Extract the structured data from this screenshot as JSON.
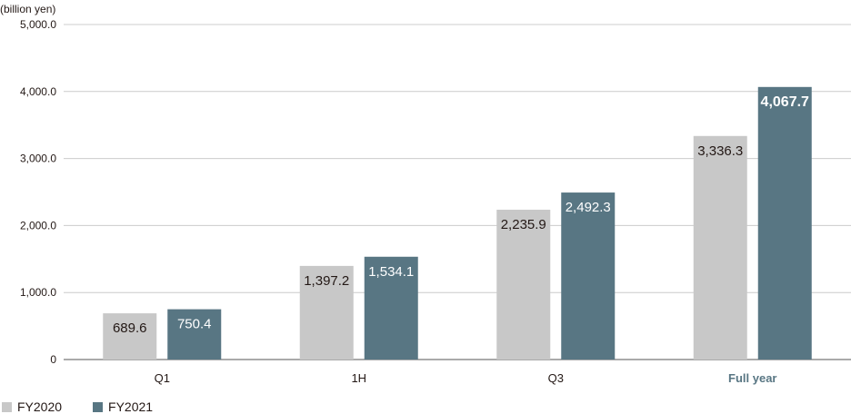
{
  "chart_data": {
    "type": "bar",
    "unit_label": "(billion yen)",
    "categories": [
      "Q1",
      "1H",
      "Q3",
      "Full year"
    ],
    "highlight_category": "Full year",
    "series": [
      {
        "name": "FY2020",
        "color": "#c8c8c8",
        "values": [
          689.6,
          1397.2,
          2235.9,
          3336.3
        ],
        "labels": [
          "689.6",
          "1,397.2",
          "2,235.9",
          "3,336.3"
        ],
        "label_color": "#231815"
      },
      {
        "name": "FY2021",
        "color": "#587683",
        "values": [
          750.4,
          1534.1,
          2492.3,
          4067.7
        ],
        "labels": [
          "750.4",
          "1,534.1",
          "2,492.3",
          "4,067.7"
        ],
        "label_color": "#ffffff"
      }
    ],
    "ylim": [
      0,
      5000
    ],
    "yticks": [
      0,
      1000,
      2000,
      3000,
      4000,
      5000
    ],
    "ytick_labels": [
      "0",
      "1,000.0",
      "2,000.0",
      "3,000.0",
      "4,000.0",
      "5,000.0"
    ],
    "grid": true,
    "legend_position": "bottom-left",
    "colors": {
      "grid": "#cccccc",
      "axis": "#555555",
      "highlight_text": "#587683"
    }
  }
}
